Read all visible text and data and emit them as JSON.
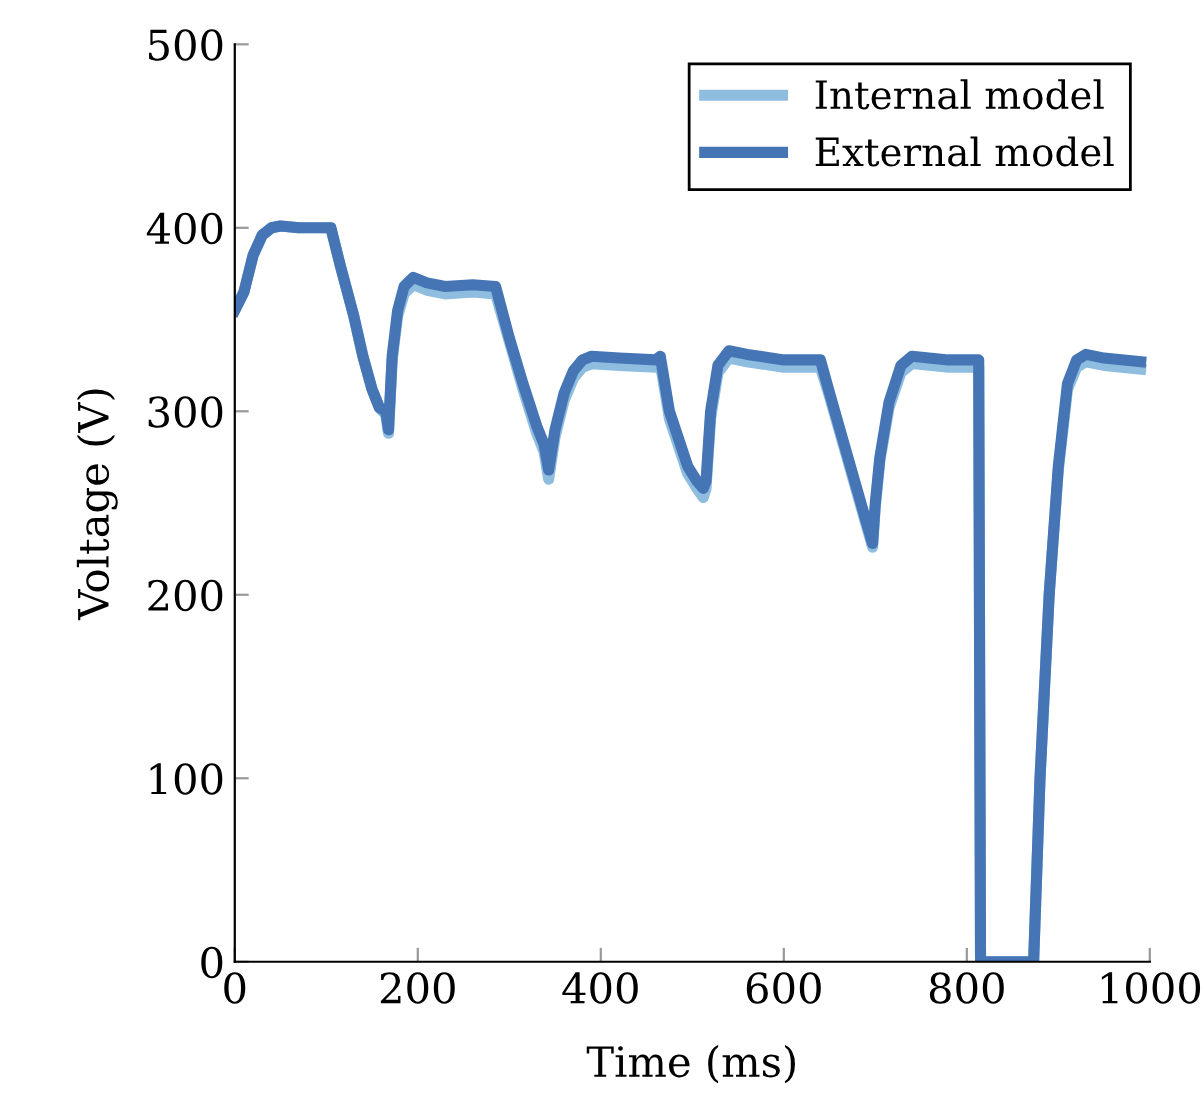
{
  "chart_data": {
    "type": "line",
    "xlabel": "Time (ms)",
    "ylabel": "Voltage (V)",
    "xlim": [
      0,
      1000
    ],
    "ylim": [
      0,
      500
    ],
    "xticks": [
      0,
      200,
      400,
      600,
      800,
      1000
    ],
    "yticks": [
      0,
      100,
      200,
      300,
      400,
      500
    ],
    "grid": false,
    "legend": "top right",
    "marker": "none",
    "line_style": "solid",
    "x": [
      0,
      10,
      20,
      30,
      40,
      50,
      70,
      100,
      105,
      115,
      130,
      140,
      150,
      158,
      165,
      168,
      172,
      178,
      185,
      195,
      210,
      230,
      260,
      285,
      300,
      315,
      330,
      338,
      343,
      350,
      360,
      370,
      380,
      390,
      420,
      460,
      465,
      475,
      485,
      495,
      505,
      512,
      515,
      520,
      528,
      540,
      560,
      600,
      640,
      650,
      670,
      690,
      697,
      700,
      705,
      715,
      728,
      740,
      780,
      813,
      815,
      870,
      873,
      880,
      890,
      900,
      910,
      920,
      930,
      950,
      990
    ],
    "series": [
      {
        "name": "Internal model",
        "color": "#8fbde0",
        "values": [
          355,
          365,
          385,
          396,
          400,
          401,
          400,
          400,
          400,
          380,
          352,
          330,
          312,
          302,
          298,
          288,
          328,
          352,
          364,
          369,
          366,
          364,
          365,
          364,
          338,
          312,
          288,
          278,
          263,
          286,
          306,
          318,
          324,
          326,
          325,
          324,
          326,
          296,
          281,
          266,
          258,
          253,
          258,
          296,
          321,
          329,
          327,
          324,
          324,
          308,
          273,
          238,
          226,
          248,
          273,
          302,
          321,
          326,
          324,
          324,
          0,
          0,
          0,
          100,
          200,
          268,
          312,
          324,
          327,
          325,
          323
        ]
      },
      {
        "name": "External model",
        "color": "#4575b4",
        "values": [
          355,
          365,
          385,
          396,
          400,
          401,
          400,
          400,
          400,
          380,
          352,
          330,
          312,
          302,
          300,
          290,
          330,
          355,
          368,
          373,
          370,
          368,
          369,
          368,
          340,
          315,
          292,
          282,
          268,
          290,
          310,
          322,
          328,
          330,
          329,
          328,
          330,
          300,
          285,
          270,
          262,
          258,
          262,
          300,
          325,
          333,
          331,
          328,
          328,
          310,
          275,
          240,
          228,
          250,
          275,
          305,
          325,
          330,
          328,
          328,
          0,
          0,
          0,
          100,
          200,
          270,
          315,
          328,
          331,
          329,
          327
        ]
      }
    ]
  }
}
